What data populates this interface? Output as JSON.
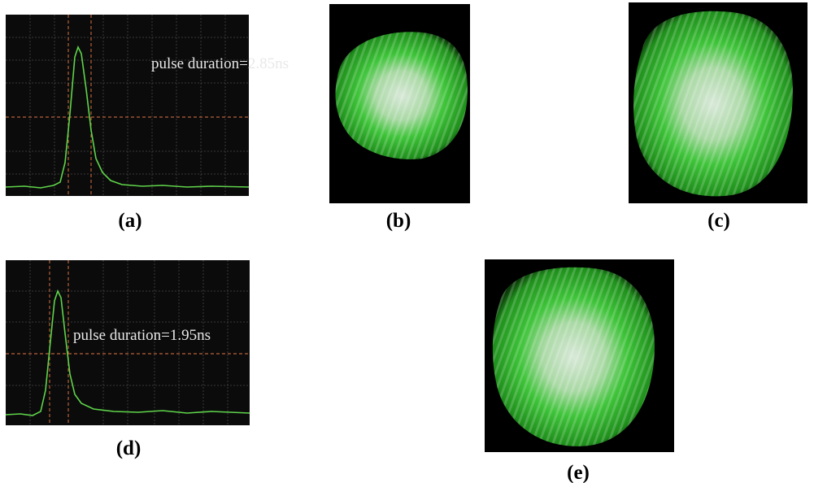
{
  "panels": [
    {
      "label": "(a)",
      "annotation": "pulse duration=2.85ns"
    },
    {
      "label": "(b)"
    },
    {
      "label": "(c)"
    },
    {
      "label": "(d)",
      "annotation": "pulse duration=1.95ns"
    },
    {
      "label": "(e)"
    }
  ]
}
